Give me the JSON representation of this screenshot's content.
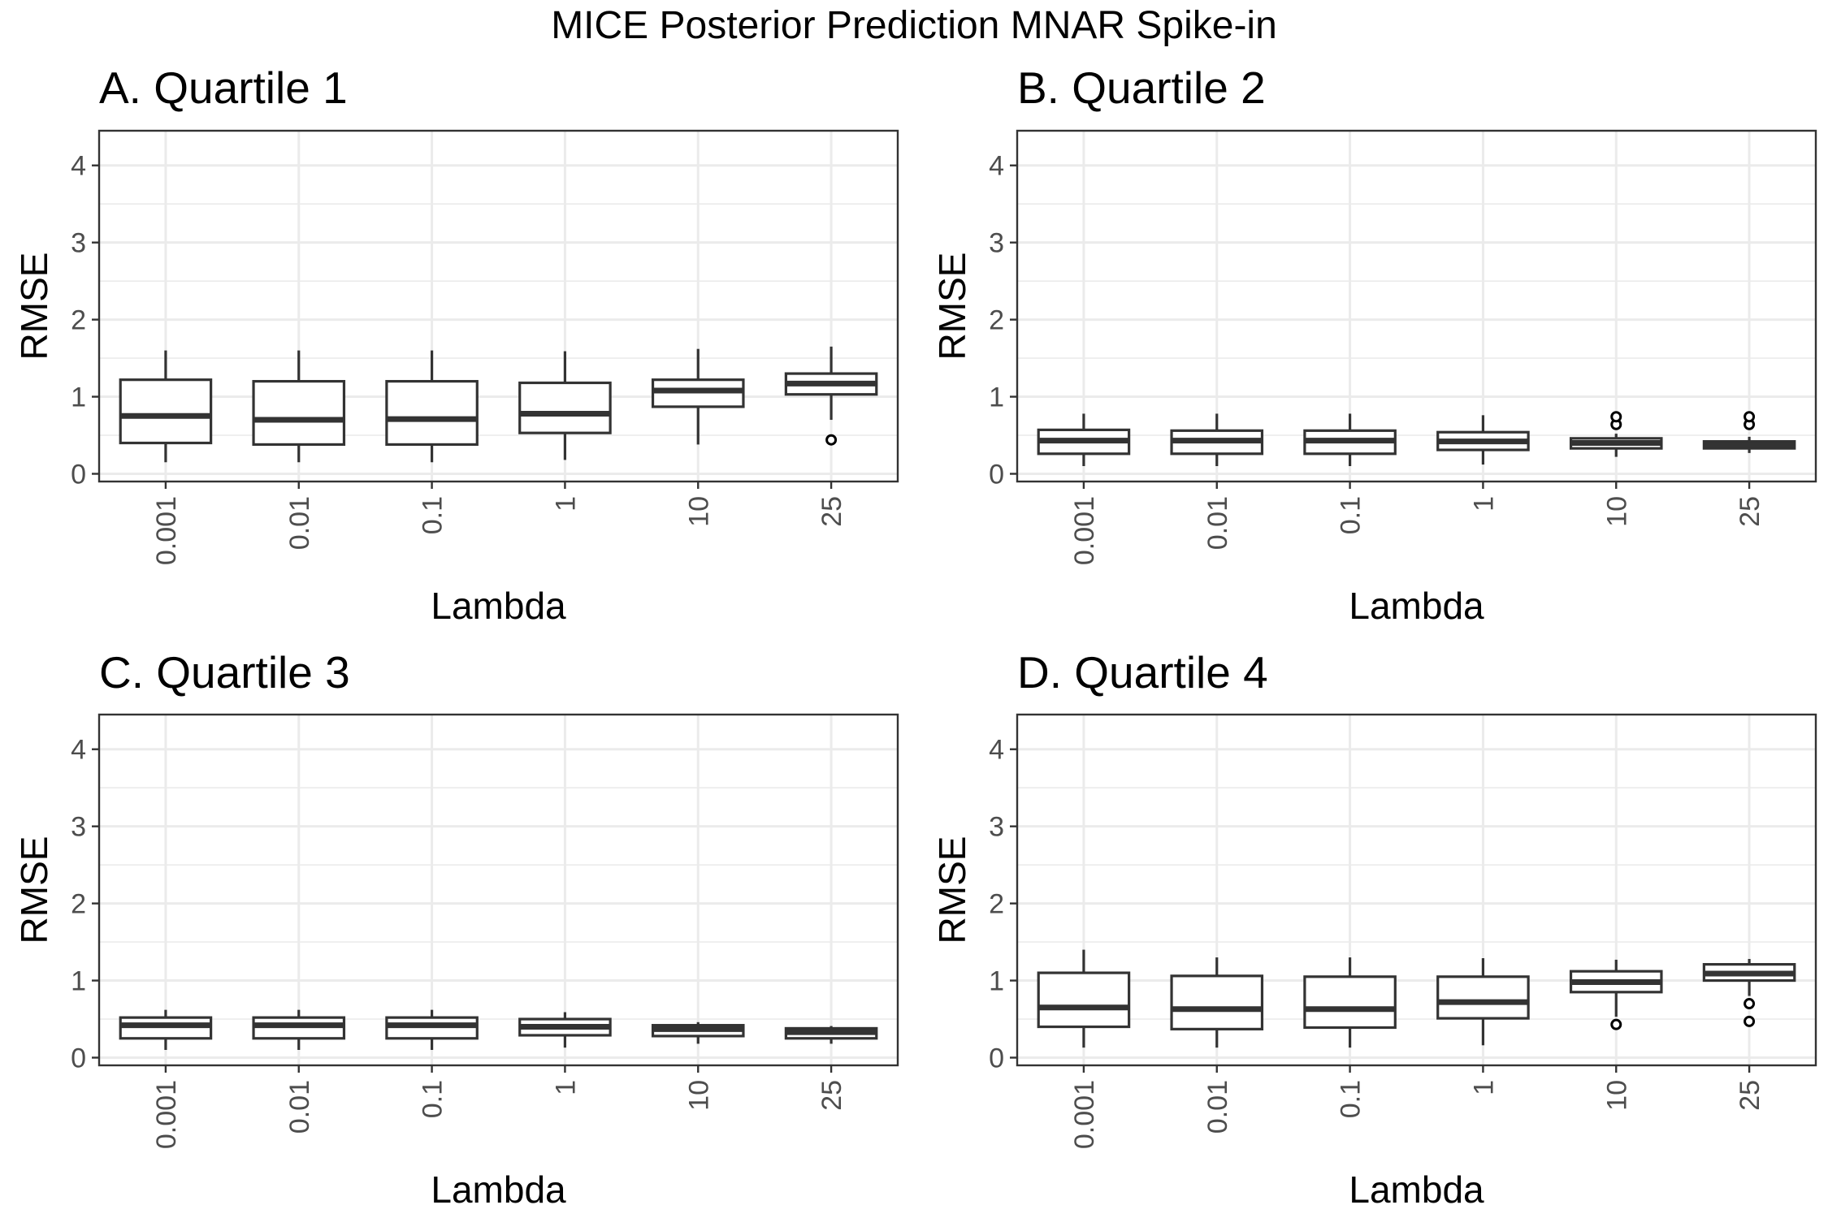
{
  "figure_title": "MICE Posterior Prediction MNAR Spike-in",
  "chart_data": [
    {
      "type": "box",
      "title": "A. Quartile 1",
      "xlabel": "Lambda",
      "ylabel": "RMSE",
      "ylim": [
        -0.1,
        4.45
      ],
      "yticks": [
        "0",
        "1",
        "2",
        "3",
        "4"
      ],
      "categories": [
        "0.001",
        "0.01",
        "0.1",
        "1",
        "10",
        "25"
      ],
      "boxes": [
        {
          "whisker_low": 0.15,
          "q1": 0.4,
          "median": 0.75,
          "q3": 1.22,
          "whisker_high": 1.6,
          "outliers": []
        },
        {
          "whisker_low": 0.15,
          "q1": 0.38,
          "median": 0.7,
          "q3": 1.2,
          "whisker_high": 1.6,
          "outliers": []
        },
        {
          "whisker_low": 0.15,
          "q1": 0.38,
          "median": 0.71,
          "q3": 1.2,
          "whisker_high": 1.6,
          "outliers": []
        },
        {
          "whisker_low": 0.18,
          "q1": 0.53,
          "median": 0.78,
          "q3": 1.18,
          "whisker_high": 1.59,
          "outliers": []
        },
        {
          "whisker_low": 0.38,
          "q1": 0.87,
          "median": 1.08,
          "q3": 1.22,
          "whisker_high": 1.62,
          "outliers": []
        },
        {
          "whisker_low": 0.7,
          "q1": 1.03,
          "median": 1.17,
          "q3": 1.3,
          "whisker_high": 1.65,
          "outliers": [
            0.44
          ]
        }
      ]
    },
    {
      "type": "box",
      "title": "B. Quartile 2",
      "xlabel": "Lambda",
      "ylabel": "RMSE",
      "ylim": [
        -0.1,
        4.45
      ],
      "yticks": [
        "0",
        "1",
        "2",
        "3",
        "4"
      ],
      "categories": [
        "0.001",
        "0.01",
        "0.1",
        "1",
        "10",
        "25"
      ],
      "boxes": [
        {
          "whisker_low": 0.1,
          "q1": 0.26,
          "median": 0.43,
          "q3": 0.57,
          "whisker_high": 0.78,
          "outliers": []
        },
        {
          "whisker_low": 0.1,
          "q1": 0.26,
          "median": 0.43,
          "q3": 0.56,
          "whisker_high": 0.78,
          "outliers": []
        },
        {
          "whisker_low": 0.1,
          "q1": 0.26,
          "median": 0.43,
          "q3": 0.56,
          "whisker_high": 0.78,
          "outliers": []
        },
        {
          "whisker_low": 0.12,
          "q1": 0.31,
          "median": 0.42,
          "q3": 0.54,
          "whisker_high": 0.76,
          "outliers": []
        },
        {
          "whisker_low": 0.22,
          "q1": 0.33,
          "median": 0.4,
          "q3": 0.46,
          "whisker_high": 0.52,
          "outliers": [
            0.64,
            0.74
          ]
        },
        {
          "whisker_low": 0.27,
          "q1": 0.33,
          "median": 0.37,
          "q3": 0.42,
          "whisker_high": 0.48,
          "outliers": [
            0.64,
            0.74
          ]
        }
      ]
    },
    {
      "type": "box",
      "title": "C. Quartile 3",
      "xlabel": "Lambda",
      "ylabel": "RMSE",
      "ylim": [
        -0.1,
        4.45
      ],
      "yticks": [
        "0",
        "1",
        "2",
        "3",
        "4"
      ],
      "categories": [
        "0.001",
        "0.01",
        "0.1",
        "1",
        "10",
        "25"
      ],
      "boxes": [
        {
          "whisker_low": 0.1,
          "q1": 0.25,
          "median": 0.42,
          "q3": 0.52,
          "whisker_high": 0.62,
          "outliers": []
        },
        {
          "whisker_low": 0.1,
          "q1": 0.25,
          "median": 0.42,
          "q3": 0.52,
          "whisker_high": 0.62,
          "outliers": []
        },
        {
          "whisker_low": 0.1,
          "q1": 0.25,
          "median": 0.42,
          "q3": 0.52,
          "whisker_high": 0.62,
          "outliers": []
        },
        {
          "whisker_low": 0.13,
          "q1": 0.29,
          "median": 0.4,
          "q3": 0.5,
          "whisker_high": 0.59,
          "outliers": []
        },
        {
          "whisker_low": 0.18,
          "q1": 0.28,
          "median": 0.37,
          "q3": 0.42,
          "whisker_high": 0.46,
          "outliers": []
        },
        {
          "whisker_low": 0.18,
          "q1": 0.25,
          "median": 0.33,
          "q3": 0.38,
          "whisker_high": 0.41,
          "outliers": []
        }
      ]
    },
    {
      "type": "box",
      "title": "D. Quartile 4",
      "xlabel": "Lambda",
      "ylabel": "RMSE",
      "ylim": [
        -0.1,
        4.45
      ],
      "yticks": [
        "0",
        "1",
        "2",
        "3",
        "4"
      ],
      "categories": [
        "0.001",
        "0.01",
        "0.1",
        "1",
        "10",
        "25"
      ],
      "boxes": [
        {
          "whisker_low": 0.13,
          "q1": 0.4,
          "median": 0.65,
          "q3": 1.1,
          "whisker_high": 1.4,
          "outliers": []
        },
        {
          "whisker_low": 0.13,
          "q1": 0.37,
          "median": 0.63,
          "q3": 1.06,
          "whisker_high": 1.3,
          "outliers": []
        },
        {
          "whisker_low": 0.13,
          "q1": 0.39,
          "median": 0.63,
          "q3": 1.05,
          "whisker_high": 1.3,
          "outliers": []
        },
        {
          "whisker_low": 0.16,
          "q1": 0.51,
          "median": 0.72,
          "q3": 1.05,
          "whisker_high": 1.29,
          "outliers": []
        },
        {
          "whisker_low": 0.53,
          "q1": 0.85,
          "median": 0.98,
          "q3": 1.12,
          "whisker_high": 1.27,
          "outliers": [
            0.43
          ]
        },
        {
          "whisker_low": 0.8,
          "q1": 1.0,
          "median": 1.09,
          "q3": 1.21,
          "whisker_high": 1.28,
          "outliers": [
            0.47,
            0.7
          ]
        }
      ]
    }
  ]
}
